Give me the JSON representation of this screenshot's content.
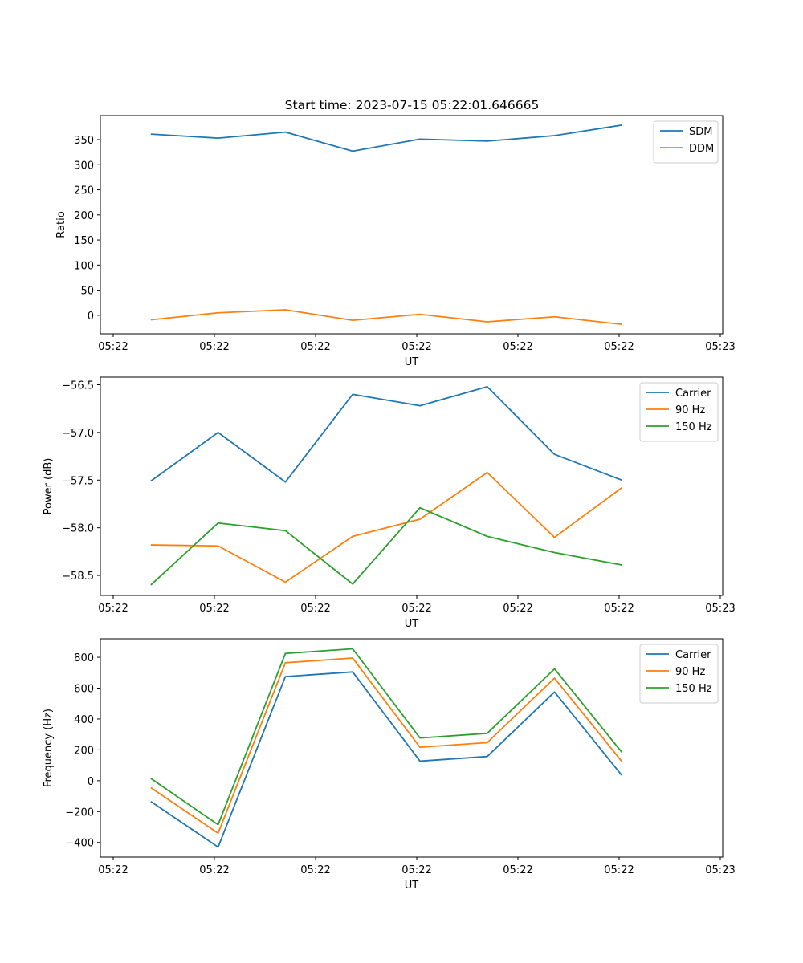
{
  "title": "Start time: 2023-07-15 05:22:01.646665",
  "colors": {
    "blue": "#1f77b4",
    "orange": "#ff7f0e",
    "green": "#2ca02c"
  },
  "chart_data": [
    {
      "type": "line",
      "xlabel": "UT",
      "ylabel": "Ratio",
      "x_tick_labels": [
        "05:22",
        "05:22",
        "05:22",
        "05:22",
        "05:22",
        "05:22",
        "05:23"
      ],
      "xlim": [
        -0.75,
        8.5
      ],
      "ylim": [
        -37,
        398
      ],
      "y_ticks": [
        0,
        50,
        100,
        150,
        200,
        250,
        300,
        350
      ],
      "x": [
        0,
        1,
        2,
        3,
        4,
        5,
        6,
        7
      ],
      "legend_position": "top-right",
      "series": [
        {
          "name": "SDM",
          "color": "#1f77b4",
          "values": [
            361,
            353,
            365,
            327,
            351,
            347,
            358,
            379
          ]
        },
        {
          "name": "DDM",
          "color": "#ff7f0e",
          "values": [
            -9,
            5,
            11,
            -10,
            2,
            -13,
            -3,
            -18
          ]
        }
      ]
    },
    {
      "type": "line",
      "xlabel": "UT",
      "ylabel": "Power (dB)",
      "x_tick_labels": [
        "05:22",
        "05:22",
        "05:22",
        "05:22",
        "05:22",
        "05:22",
        "05:23"
      ],
      "xlim": [
        -0.75,
        8.5
      ],
      "ylim": [
        -58.71,
        -56.42
      ],
      "y_ticks": [
        -58.5,
        -58.0,
        -57.5,
        -57.0,
        -56.5
      ],
      "x": [
        0,
        1,
        2,
        3,
        4,
        5,
        6,
        7
      ],
      "legend_position": "top-right",
      "series": [
        {
          "name": "Carrier",
          "color": "#1f77b4",
          "values": [
            -57.51,
            -57.0,
            -57.52,
            -56.6,
            -56.72,
            -56.52,
            -57.23,
            -57.5
          ]
        },
        {
          "name": "90 Hz",
          "color": "#ff7f0e",
          "values": [
            -58.18,
            -58.19,
            -58.57,
            -58.09,
            -57.91,
            -57.42,
            -58.1,
            -57.58
          ]
        },
        {
          "name": "150 Hz",
          "color": "#2ca02c",
          "values": [
            -58.6,
            -57.95,
            -58.03,
            -58.59,
            -57.79,
            -58.09,
            -58.26,
            -58.39
          ]
        }
      ]
    },
    {
      "type": "line",
      "xlabel": "UT",
      "ylabel": "Frequency (Hz)",
      "x_tick_labels": [
        "05:22",
        "05:22",
        "05:22",
        "05:22",
        "05:22",
        "05:22",
        "05:23"
      ],
      "xlim": [
        -0.75,
        8.5
      ],
      "ylim": [
        -495,
        920
      ],
      "y_ticks": [
        -400,
        -200,
        0,
        200,
        400,
        600,
        800
      ],
      "x": [
        0,
        1,
        2,
        3,
        4,
        5,
        6,
        7
      ],
      "legend_position": "top-right",
      "series": [
        {
          "name": "Carrier",
          "color": "#1f77b4",
          "values": [
            -135,
            -430,
            675,
            705,
            127,
            157,
            575,
            35
          ]
        },
        {
          "name": "90 Hz",
          "color": "#ff7f0e",
          "values": [
            -45,
            -340,
            765,
            795,
            217,
            247,
            665,
            125
          ]
        },
        {
          "name": "150 Hz",
          "color": "#2ca02c",
          "values": [
            15,
            -285,
            825,
            855,
            277,
            307,
            725,
            185
          ]
        }
      ]
    }
  ]
}
